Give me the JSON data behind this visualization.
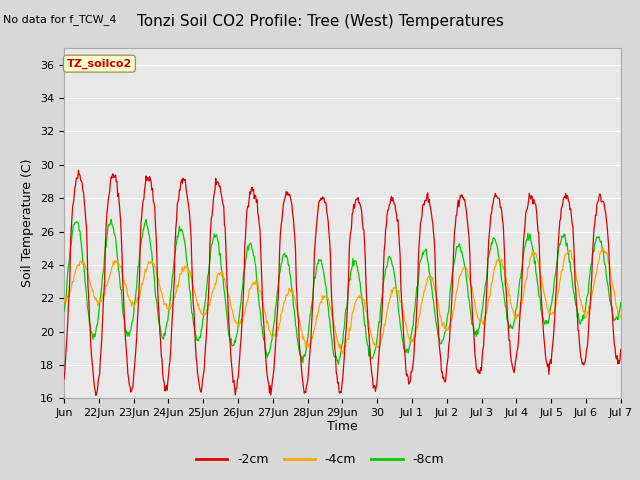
{
  "title": "Tonzi Soil CO2 Profile: Tree (West) Temperatures",
  "subtitle": "No data for f_TCW_4",
  "ylabel": "Soil Temperature (C)",
  "xlabel": "Time",
  "box_label": "TZ_soilco2",
  "ylim": [
    16,
    37
  ],
  "yticks": [
    16,
    18,
    20,
    22,
    24,
    26,
    28,
    30,
    32,
    34,
    36
  ],
  "xtick_positions": [
    0,
    1,
    2,
    3,
    4,
    5,
    6,
    7,
    8,
    9,
    10,
    11,
    12,
    13,
    14,
    15,
    16
  ],
  "xtick_labels": [
    "Jun",
    "22Jun",
    "23Jun",
    "24Jun",
    "25Jun",
    "26Jun",
    "27Jun",
    "28Jun",
    "29Jun",
    "30",
    "Jul 1",
    "Jul 2",
    "Jul 3",
    "Jul 4",
    "Jul 5",
    "Jul 6",
    "Jul 7"
  ],
  "line_2cm_color": "#dd0000",
  "line_4cm_color": "#ffa500",
  "line_8cm_color": "#00cc00",
  "fig_bg": "#d8d8d8",
  "plot_bg": "#e8e8e8",
  "title_fontsize": 11,
  "axis_label_fontsize": 9,
  "tick_fontsize": 8
}
